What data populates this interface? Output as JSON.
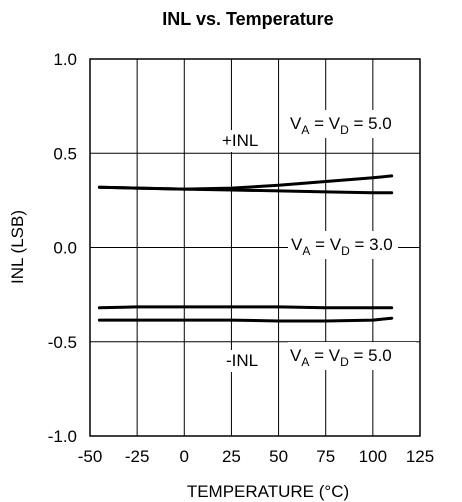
{
  "chart_data": {
    "type": "line",
    "title": "INL vs. Temperature",
    "xlabel": "TEMPERATURE (°C)",
    "ylabel": "INL (LSB)",
    "xlim": [
      -50,
      125
    ],
    "ylim": [
      -1.0,
      1.0
    ],
    "x_ticks": [
      -50,
      -25,
      0,
      25,
      50,
      75,
      100,
      125
    ],
    "x_tick_labels": [
      "-50",
      "-25",
      "0",
      "25",
      "50",
      "75",
      "100",
      "125"
    ],
    "y_ticks": [
      1.0,
      0.5,
      0.0,
      -0.5,
      -1.0
    ],
    "y_tick_labels": [
      "1.0",
      "0.5",
      "0.0",
      "-0.5",
      "-1.0"
    ],
    "grid": true,
    "series": [
      {
        "x": [
          -45,
          -25,
          0,
          25,
          50,
          75,
          100,
          110
        ],
        "y": [
          0.32,
          0.315,
          0.31,
          0.315,
          0.33,
          0.35,
          0.37,
          0.38
        ]
      },
      {
        "x": [
          -45,
          -25,
          0,
          25,
          50,
          75,
          100,
          110
        ],
        "y": [
          0.32,
          0.315,
          0.31,
          0.305,
          0.3,
          0.295,
          0.29,
          0.29
        ]
      },
      {
        "x": [
          -45,
          -25,
          0,
          25,
          50,
          75,
          100,
          110
        ],
        "y": [
          -0.32,
          -0.315,
          -0.315,
          -0.315,
          -0.315,
          -0.32,
          -0.32,
          -0.32
        ]
      },
      {
        "x": [
          -45,
          -25,
          0,
          25,
          50,
          75,
          100,
          110
        ],
        "y": [
          -0.385,
          -0.385,
          -0.385,
          -0.385,
          -0.39,
          -0.39,
          -0.385,
          -0.375
        ]
      }
    ],
    "annotations": [
      {
        "id": "plus-inl",
        "text": "+INL"
      },
      {
        "id": "minus-inl",
        "text": "-INL"
      },
      {
        "id": "va-vd-5-upper",
        "v1": "V",
        "sub1": "A",
        "mid": " = V",
        "sub2": "D",
        "val": " = 5.0"
      },
      {
        "id": "va-vd-3",
        "v1": "V",
        "sub1": "A",
        "mid": " = V",
        "sub2": "D",
        "val": " = 3.0"
      },
      {
        "id": "va-vd-5-lower",
        "v1": "V",
        "sub1": "A",
        "mid": " = V",
        "sub2": "D",
        "val": " = 5.0"
      }
    ]
  }
}
